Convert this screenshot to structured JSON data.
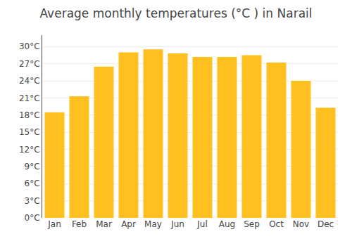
{
  "chart_data": {
    "type": "bar",
    "title": "Average monthly temperatures (°C ) in Narail",
    "categories": [
      "Jan",
      "Feb",
      "Mar",
      "Apr",
      "May",
      "Jun",
      "Jul",
      "Aug",
      "Sep",
      "Oct",
      "Nov",
      "Dec"
    ],
    "values": [
      18.5,
      21.3,
      26.5,
      29.0,
      29.5,
      28.8,
      28.2,
      28.2,
      28.5,
      27.2,
      24.0,
      19.3
    ],
    "color": "#FFC020",
    "ylim": [
      0,
      32
    ],
    "yticks": [
      {
        "value": 0,
        "label": "0°C"
      },
      {
        "value": 3,
        "label": "3°C"
      },
      {
        "value": 6,
        "label": "6°C"
      },
      {
        "value": 9,
        "label": "9°C"
      },
      {
        "value": 12,
        "label": "12°C"
      },
      {
        "value": 15,
        "label": "15°C"
      },
      {
        "value": 18,
        "label": "18°C"
      },
      {
        "value": 21,
        "label": "21°C"
      },
      {
        "value": 24,
        "label": "24°C"
      },
      {
        "value": 27,
        "label": "27°C"
      },
      {
        "value": 30,
        "label": "30°C"
      }
    ],
    "grid": true
  }
}
